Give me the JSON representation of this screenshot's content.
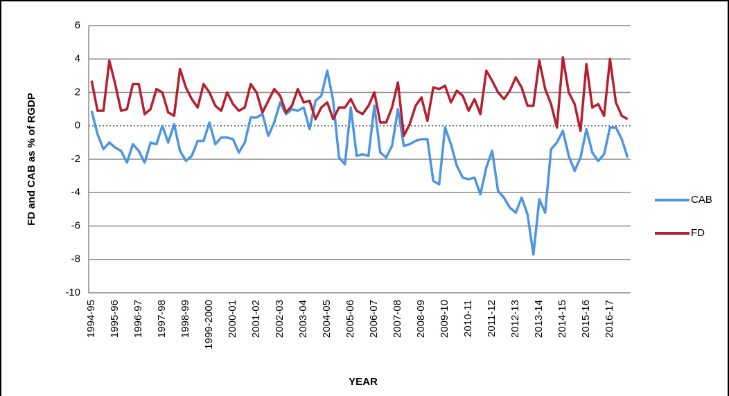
{
  "chart_data": {
    "type": "line",
    "y_label": "FD and CAB as % of RGDP",
    "x_label": "YEAR",
    "categories": [
      "1994-95",
      null,
      null,
      null,
      "1995-96",
      null,
      null,
      null,
      "1996-97",
      null,
      null,
      null,
      "1997-98",
      null,
      null,
      null,
      "1998-99",
      null,
      null,
      null,
      "1999-2000",
      null,
      null,
      null,
      "2000-01",
      null,
      null,
      null,
      "2001-02",
      null,
      null,
      null,
      "2002-03",
      null,
      null,
      null,
      "2003-04",
      null,
      null,
      null,
      "2004-05",
      null,
      null,
      null,
      "2005-06",
      null,
      null,
      null,
      "2006-07",
      null,
      null,
      null,
      "2007-08",
      null,
      null,
      null,
      "2008-09",
      null,
      null,
      null,
      "2009-10",
      null,
      null,
      null,
      "2010-11",
      null,
      null,
      null,
      "2011-12",
      null,
      null,
      null,
      "2012-13",
      null,
      null,
      null,
      "2013-14",
      null,
      null,
      null,
      "2014-15",
      null,
      null,
      null,
      "2015-16",
      null,
      null,
      null,
      "2016-17",
      null,
      null,
      null
    ],
    "series": [
      {
        "name": "CAB",
        "color": "#4f94e0",
        "values": [
          0.9,
          -0.5,
          -1.4,
          -1.0,
          -1.3,
          -1.5,
          -2.2,
          -1.1,
          -1.5,
          -2.2,
          -1.0,
          -1.1,
          0.0,
          -1.0,
          0.1,
          -1.5,
          -2.1,
          -1.8,
          -0.9,
          -0.9,
          0.2,
          -1.1,
          -0.7,
          -0.7,
          -0.8,
          -1.6,
          -1.0,
          0.5,
          0.5,
          0.7,
          -0.6,
          0.2,
          1.4,
          0.7,
          1.0,
          0.9,
          1.1,
          -0.2,
          1.5,
          1.8,
          3.3,
          1.5,
          -1.9,
          -2.3,
          1.1,
          -1.8,
          -1.7,
          -1.8,
          1.2,
          -1.6,
          -1.9,
          -1.2,
          1.0,
          -1.2,
          -1.1,
          -0.9,
          -0.8,
          -0.8,
          -3.3,
          -3.5,
          -0.1,
          -1.1,
          -2.4,
          -3.1,
          -3.2,
          -3.1,
          -4.1,
          -2.5,
          -1.5,
          -3.9,
          -4.3,
          -4.9,
          -5.2,
          -4.3,
          -5.3,
          -7.7,
          -4.4,
          -5.2,
          -1.4,
          -1.0,
          -0.3,
          -1.8,
          -2.7,
          -1.9,
          -0.2,
          -1.6,
          -2.1,
          -1.7,
          -0.1,
          -0.1,
          -0.8,
          -1.9
        ]
      },
      {
        "name": "FD",
        "color": "#b5202e",
        "values": [
          2.7,
          0.9,
          0.9,
          3.9,
          2.5,
          0.9,
          1.0,
          2.5,
          2.5,
          0.7,
          1.0,
          2.2,
          2.0,
          0.8,
          0.6,
          3.4,
          2.3,
          1.6,
          1.1,
          2.5,
          2.0,
          1.2,
          0.9,
          2.0,
          1.3,
          0.9,
          1.1,
          2.5,
          2.0,
          0.8,
          1.5,
          2.2,
          1.8,
          0.8,
          1.2,
          2.2,
          1.4,
          1.5,
          0.4,
          1.1,
          1.4,
          0.4,
          1.1,
          1.1,
          1.6,
          0.9,
          0.7,
          1.2,
          2.0,
          0.2,
          0.2,
          1.1,
          2.6,
          -0.6,
          0.1,
          1.2,
          1.7,
          0.3,
          2.3,
          2.2,
          2.4,
          1.4,
          2.1,
          1.8,
          0.9,
          1.6,
          0.7,
          3.3,
          2.7,
          2.0,
          1.6,
          2.1,
          2.9,
          2.3,
          1.2,
          1.2,
          3.9,
          2.2,
          1.3,
          -0.1,
          4.1,
          2.0,
          1.3,
          -0.3,
          3.7,
          1.1,
          1.3,
          0.6,
          4.0,
          1.4,
          0.6,
          0.4
        ]
      }
    ],
    "ylim": [
      -10,
      6
    ],
    "yticks": [
      -10,
      -8,
      -6,
      -4,
      -2,
      0,
      2,
      4,
      6
    ],
    "grid": true,
    "legend": "right"
  }
}
